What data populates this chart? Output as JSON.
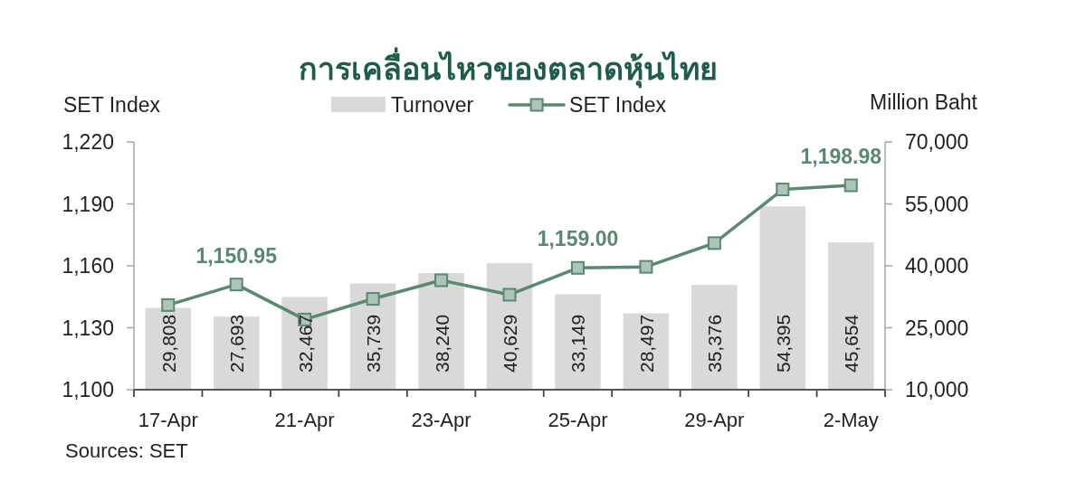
{
  "chart_data": {
    "type": "bar",
    "title": "การเคลื่อนไหวของตลาดหุ้นไทย",
    "categories": [
      "17-Apr",
      null,
      "21-Apr",
      null,
      "23-Apr",
      null,
      "25-Apr",
      null,
      "29-Apr",
      null,
      "2-May"
    ],
    "ylabel": "SET Index",
    "y2label": "Million Baht",
    "ylim": [
      1100,
      1220
    ],
    "yticks": [
      {
        "value": 1100,
        "label": "1,100"
      },
      {
        "value": 1130,
        "label": "1,130"
      },
      {
        "value": 1160,
        "label": "1,160"
      },
      {
        "value": 1190,
        "label": "1,190"
      },
      {
        "value": 1220,
        "label": "1,220"
      }
    ],
    "y2lim": [
      10000,
      70000
    ],
    "y2ticks": [
      {
        "value": 10000,
        "label": "10,000"
      },
      {
        "value": 25000,
        "label": "25,000"
      },
      {
        "value": 40000,
        "label": "40,000"
      },
      {
        "value": 55000,
        "label": "55,000"
      },
      {
        "value": 70000,
        "label": "70,000"
      }
    ],
    "legend": "top",
    "series": [
      {
        "name": "Turnover",
        "axis": "y2",
        "color": "#d9d9d9",
        "values": [
          29808,
          27693,
          32467,
          35739,
          38240,
          40629,
          33149,
          28497,
          35376,
          54395,
          45654
        ],
        "value_labels": [
          "29,808",
          "27,693",
          "32,467",
          "35,739",
          "38,240",
          "40,629",
          "33,149",
          "28,497",
          "35,376",
          "54,395",
          "45,654"
        ]
      },
      {
        "name": "SET Index",
        "type": "line",
        "color": "#5a8872",
        "marker": "square",
        "values": [
          1141,
          1150.95,
          1134,
          1144,
          1153,
          1146,
          1159,
          1159.5,
          1171,
          1197,
          1198.98
        ],
        "value_labels": [
          null,
          "1,150.95",
          null,
          null,
          null,
          null,
          "1,159.00",
          null,
          null,
          null,
          "1,198.98"
        ]
      }
    ],
    "annotations": [
      "Sources: SET"
    ]
  }
}
